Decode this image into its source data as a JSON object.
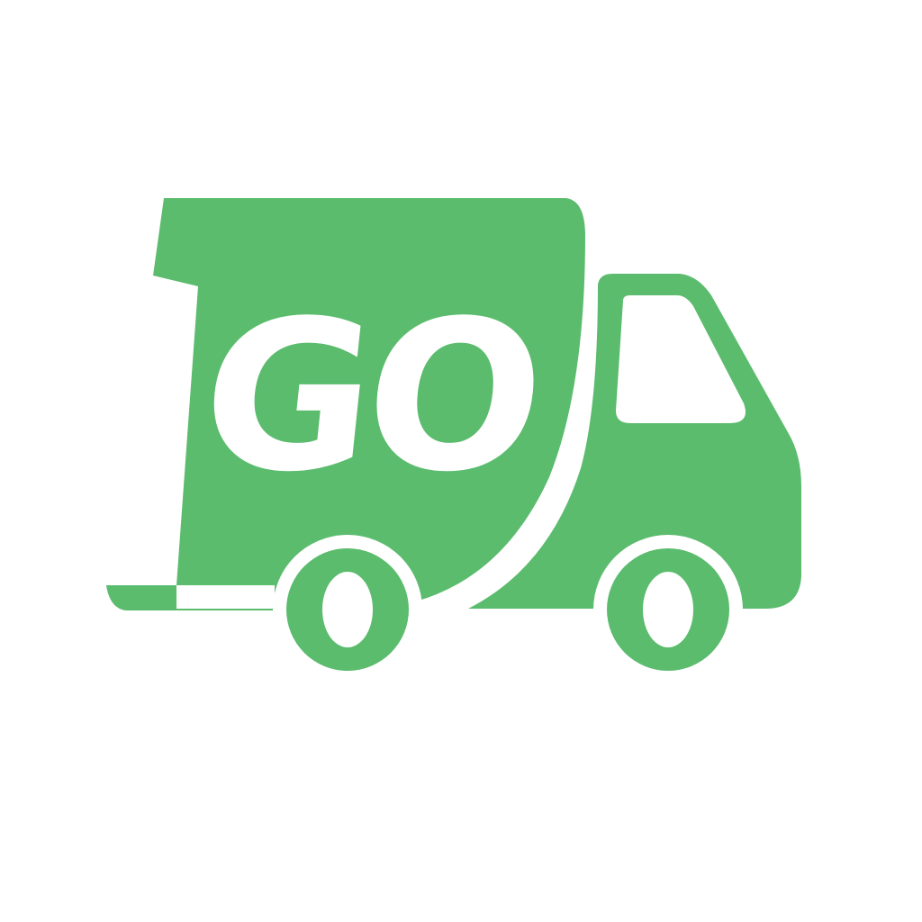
{
  "logo": {
    "icon": "delivery-truck-icon",
    "text": "GO"
  },
  "colors": {
    "brand_green": "#5bbc6e",
    "background": "#ffffff"
  }
}
